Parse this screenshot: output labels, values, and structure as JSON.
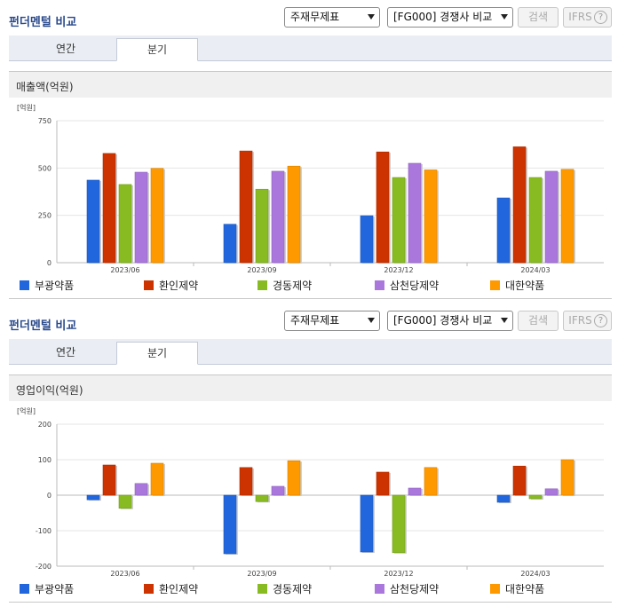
{
  "header": {
    "title": "펀더멘털 비교",
    "select_1": "주재무제표",
    "select_2": "[FG000] 경쟁사 비교",
    "search_label": "검색",
    "ifrs_label": "IFRS",
    "help_glyph": "?"
  },
  "tabs": [
    "연간",
    "분기"
  ],
  "colors": [
    "#2266dd",
    "#cc3300",
    "#88bb22",
    "#aa77dd",
    "#ff9900"
  ],
  "chart_data": [
    {
      "type": "bar",
      "title": "매출액(억원)",
      "unit": "[억원]",
      "categories": [
        "2023/06",
        "2023/09",
        "2023/12",
        "2024/03"
      ],
      "ylim": [
        0,
        750
      ],
      "yticks": [
        0,
        250,
        500,
        750
      ],
      "grid": true,
      "legend_position": "bottom",
      "series": [
        {
          "name": "부광약품",
          "values": [
            436,
            203,
            248,
            342
          ]
        },
        {
          "name": "환인제약",
          "values": [
            577,
            590,
            585,
            612
          ]
        },
        {
          "name": "경동제약",
          "values": [
            413,
            388,
            450,
            450
          ]
        },
        {
          "name": "삼천당제약",
          "values": [
            478,
            483,
            525,
            483
          ]
        },
        {
          "name": "대한약품",
          "values": [
            498,
            510,
            490,
            493
          ]
        }
      ]
    },
    {
      "type": "bar",
      "title": "영업이익(억원)",
      "unit": "[억원]",
      "categories": [
        "2023/06",
        "2023/09",
        "2023/12",
        "2024/03"
      ],
      "ylim": [
        -200,
        200
      ],
      "yticks": [
        -200,
        -100,
        0,
        100,
        200
      ],
      "grid": true,
      "legend_position": "bottom",
      "series": [
        {
          "name": "부광약품",
          "values": [
            -13,
            -165,
            -160,
            -20
          ]
        },
        {
          "name": "환인제약",
          "values": [
            85,
            78,
            65,
            82
          ]
        },
        {
          "name": "경동제약",
          "values": [
            -37,
            -18,
            -162,
            -10
          ]
        },
        {
          "name": "삼천당제약",
          "values": [
            33,
            25,
            20,
            18
          ]
        },
        {
          "name": "대한약품",
          "values": [
            90,
            97,
            78,
            100
          ]
        }
      ]
    }
  ]
}
